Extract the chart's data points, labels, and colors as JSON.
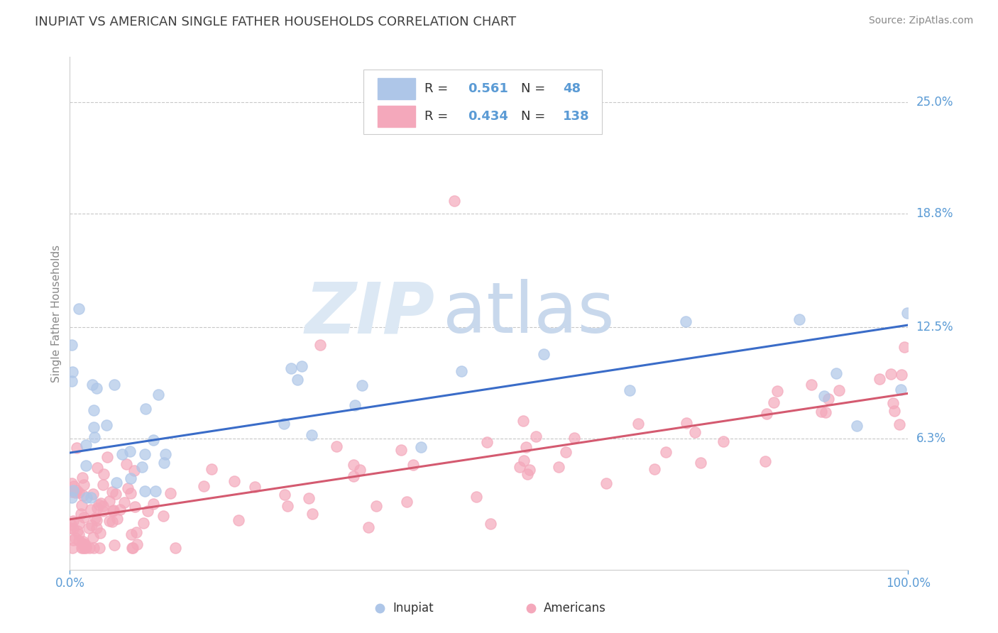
{
  "title": "INUPIAT VS AMERICAN SINGLE FATHER HOUSEHOLDS CORRELATION CHART",
  "source": "Source: ZipAtlas.com",
  "ylabel": "Single Father Households",
  "xlim": [
    0.0,
    1.0
  ],
  "ylim": [
    -0.01,
    0.275
  ],
  "plot_ylim": [
    0.0,
    0.265
  ],
  "ytick_labels": [
    "6.3%",
    "12.5%",
    "18.8%",
    "25.0%"
  ],
  "ytick_values": [
    0.063,
    0.125,
    0.188,
    0.25
  ],
  "xtick_labels": [
    "0.0%",
    "100.0%"
  ],
  "xtick_values": [
    0.0,
    1.0
  ],
  "inupiat_R": 0.561,
  "inupiat_N": 48,
  "americans_R": 0.434,
  "americans_N": 138,
  "inupiat_color": "#aec6e8",
  "americans_color": "#f4a8bb",
  "line_inupiat_color": "#3a6cc8",
  "line_americans_color": "#d45a70",
  "background_color": "#ffffff",
  "grid_color": "#c8c8c8",
  "tick_color": "#5b9bd5",
  "title_color": "#404040",
  "ylabel_color": "#888888",
  "source_color": "#888888",
  "legend_edge_color": "#cccccc",
  "watermark_zip_color": "#dce8f4",
  "watermark_atlas_color": "#c8d8ec",
  "line_inupiat_start": 0.055,
  "line_inupiat_end": 0.126,
  "line_americans_start": 0.018,
  "line_americans_end": 0.088
}
